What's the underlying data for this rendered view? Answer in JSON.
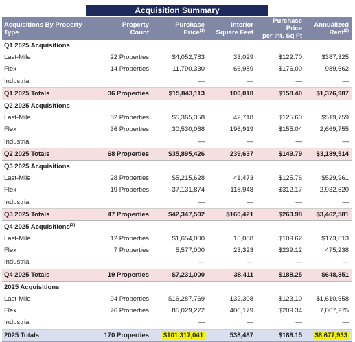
{
  "title": "Acquisition Summary",
  "headers": {
    "type": "Acquisitions By Property Type",
    "count": [
      "Property",
      "Count"
    ],
    "price": [
      "Purchase",
      "Price",
      "(1)"
    ],
    "sqft": [
      "Interior",
      "Square Feet"
    ],
    "psf": [
      "Purchase Price",
      "per Int. Sq Ft"
    ],
    "rent": [
      "Annualized",
      "Rent",
      "(2)"
    ]
  },
  "sections": [
    {
      "title": "Q1 2025 Acquisitions",
      "title_note": "",
      "rows": [
        {
          "type": "Last-Mile",
          "count": "22 Properties",
          "price": "$4,052,783",
          "sqft": "33,029",
          "psf": "$122.70",
          "rent": "$387,325"
        },
        {
          "type": "Flex",
          "count": "14 Properties",
          "price": "11,790,330",
          "sqft": "66,989",
          "psf": "$176.00",
          "rent": "989,662"
        },
        {
          "type": "Industrial",
          "count": "",
          "price": "—",
          "sqft": "—",
          "psf": "—",
          "rent": "—"
        }
      ],
      "total": {
        "type": "Q1 2025 Totals",
        "count": "36 Properties",
        "price": "$15,843,113",
        "sqft": "100,018",
        "psf": "$158.40",
        "rent": "$1,376,987"
      }
    },
    {
      "title": "Q2 2025 Acquisitions",
      "title_note": "",
      "rows": [
        {
          "type": "Last-Mile",
          "count": "32 Properties",
          "price": "$5,365,358",
          "sqft": "42,718",
          "psf": "$125.60",
          "rent": "$519,759"
        },
        {
          "type": "Flex",
          "count": "36 Properties",
          "price": "30,530,068",
          "sqft": "196,919",
          "psf": "$155.04",
          "rent": "2,669,755"
        },
        {
          "type": "Industrial",
          "count": "",
          "price": "—",
          "sqft": "—",
          "psf": "—",
          "rent": "—"
        }
      ],
      "total": {
        "type": "Q2 2025 Totals",
        "count": "68 Properties",
        "price": "$35,895,426",
        "sqft": "239,637",
        "psf": "$149.79",
        "rent": "$3,189,514"
      }
    },
    {
      "title": "Q3 2025 Acquisitions",
      "title_note": "",
      "rows": [
        {
          "type": "Last-Mile",
          "count": "28 Properties",
          "price": "$5,215,628",
          "sqft": "41,473",
          "psf": "$125.76",
          "rent": "$529,961"
        },
        {
          "type": "Flex",
          "count": "19 Properties",
          "price": "37,131,874",
          "sqft": "118,948",
          "psf": "$312.17",
          "rent": "2,932,620"
        },
        {
          "type": "Industrial",
          "count": "",
          "price": "—",
          "sqft": "—",
          "psf": "—",
          "rent": "—"
        }
      ],
      "total": {
        "type": "Q3 2025 Totals",
        "count": "47 Properties",
        "price": "$42,347,502",
        "sqft": "$160,421",
        "psf": "$263.98",
        "rent": "$3,462,581"
      }
    },
    {
      "title": "Q4 2025 Acquisitions",
      "title_note": "(3)",
      "rows": [
        {
          "type": "Last-Mile",
          "count": "12 Properties",
          "price": "$1,654,000",
          "sqft": "15,088",
          "psf": "$109.62",
          "rent": "$173,613"
        },
        {
          "type": "Flex",
          "count": "7 Properties",
          "price": "5,577,000",
          "sqft": "23,323",
          "psf": "$239.12",
          "rent": "475,238"
        },
        {
          "type": "Industrial",
          "count": "",
          "price": "—",
          "sqft": "—",
          "psf": "—",
          "rent": "—"
        }
      ],
      "total": {
        "type": "Q4 2025 Totals",
        "count": "19 Properties",
        "price": "$7,231,000",
        "sqft": "38,411",
        "psf": "$188.25",
        "rent": "$648,851"
      }
    },
    {
      "title": "2025 Acquisitions",
      "title_note": "",
      "rows": [
        {
          "type": "Last-Mile",
          "count": "94 Properties",
          "price": "$16,287,769",
          "sqft": "132,308",
          "psf": "$123.10",
          "rent": "$1,610,658"
        },
        {
          "type": "Flex",
          "count": "76 Properties",
          "price": "85,029,272",
          "sqft": "406,179",
          "psf": "$209.34",
          "rent": "7,067,275"
        },
        {
          "type": "Industrial",
          "count": "",
          "price": "—",
          "sqft": "—",
          "psf": "—",
          "rent": "—"
        }
      ],
      "total": {
        "type": "2025 Totals",
        "count": "170 Properties",
        "price": "$101,317,041",
        "sqft": "538,487",
        "psf": "$188.15",
        "rent": "$8,677,933"
      }
    }
  ],
  "highlight_color": "#f4f400"
}
